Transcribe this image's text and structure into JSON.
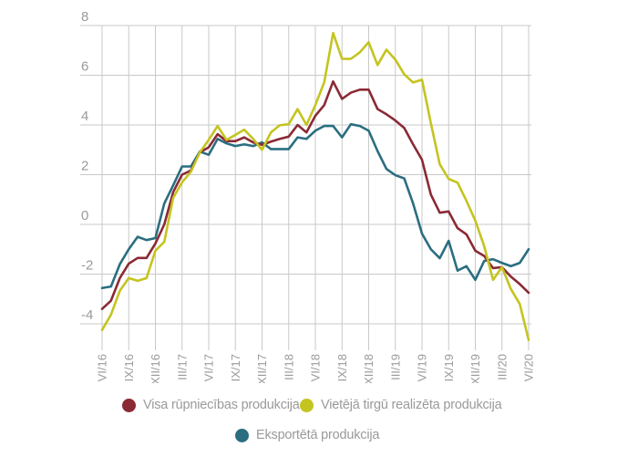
{
  "chart_data": {
    "type": "line",
    "title": "",
    "xlabel": "",
    "ylabel": "",
    "ylim": [
      -4,
      8
    ],
    "yticks": [
      8,
      6,
      4,
      2,
      0,
      -2,
      -4
    ],
    "ytick_labels": [
      "8",
      "6",
      "4",
      "2",
      "0",
      "-2",
      "-4"
    ],
    "grid": true,
    "legend_position": "bottom",
    "x_tick_labels": [
      "VI/16",
      "IX/16",
      "XII/16",
      "III/17",
      "VI/17",
      "IX/17",
      "XII/17",
      "III/18",
      "VI/18",
      "IX/18",
      "XII/18",
      "III/19",
      "VI/19",
      "IX/19",
      "XII/19",
      "III/20",
      "VI/20"
    ],
    "x_points_per_tick": 3,
    "n_points": 49,
    "series": [
      {
        "name": "Visa rūpniecības produkcija",
        "color": "#8a2a35",
        "values": [
          -3.4,
          -3.07,
          -2.16,
          -1.58,
          -1.35,
          -1.35,
          -0.77,
          0.0,
          1.3,
          2.0,
          2.17,
          2.9,
          3.1,
          3.63,
          3.35,
          3.35,
          3.5,
          3.3,
          3.2,
          3.33,
          3.44,
          3.53,
          4.0,
          3.7,
          4.37,
          4.8,
          5.75,
          5.05,
          5.3,
          5.42,
          5.42,
          4.64,
          4.43,
          4.18,
          3.88,
          3.22,
          2.6,
          1.2,
          0.47,
          0.52,
          -0.15,
          -0.4,
          -1.06,
          -1.27,
          -1.76,
          -1.72,
          -2.1,
          -2.4,
          -2.75
        ]
      },
      {
        "name": "Vietējā tirgū realizēta produkcija",
        "color": "#c4c420",
        "values": [
          -4.25,
          -3.63,
          -2.67,
          -2.16,
          -2.27,
          -2.16,
          -1.06,
          -0.7,
          1.07,
          1.69,
          2.12,
          2.9,
          3.4,
          3.96,
          3.4,
          3.6,
          3.81,
          3.44,
          3.0,
          3.7,
          3.99,
          4.03,
          4.64,
          4.0,
          4.8,
          5.72,
          7.7,
          6.66,
          6.66,
          6.92,
          7.33,
          6.41,
          7.03,
          6.63,
          6.04,
          5.71,
          5.82,
          4.07,
          2.42,
          1.83,
          1.68,
          0.95,
          0.15,
          -0.88,
          -2.23,
          -1.72,
          -2.6,
          -3.2,
          -4.65
        ]
      },
      {
        "name": "Eksportētā produkcija",
        "color": "#2a6e80",
        "values": [
          -2.56,
          -2.5,
          -1.6,
          -1.0,
          -0.5,
          -0.63,
          -0.55,
          0.84,
          1.57,
          2.33,
          2.33,
          2.93,
          2.8,
          3.44,
          3.26,
          3.15,
          3.22,
          3.15,
          3.3,
          3.03,
          3.03,
          3.03,
          3.5,
          3.44,
          3.77,
          3.96,
          3.96,
          3.5,
          4.03,
          3.96,
          3.77,
          2.95,
          2.23,
          1.98,
          1.85,
          0.84,
          -0.37,
          -1.0,
          -1.36,
          -0.66,
          -1.86,
          -1.68,
          -2.23,
          -1.47,
          -1.4,
          -1.55,
          -1.68,
          -1.55,
          -1.0
        ]
      }
    ]
  },
  "legend": {
    "items": [
      {
        "label": "Visa rūpniecības produkcija",
        "color": "#8a2a35"
      },
      {
        "label": "Vietējā tirgū realizēta produkcija",
        "color": "#c4c420"
      },
      {
        "label": "Eksportētā produkcija",
        "color": "#2a6e80"
      }
    ]
  }
}
